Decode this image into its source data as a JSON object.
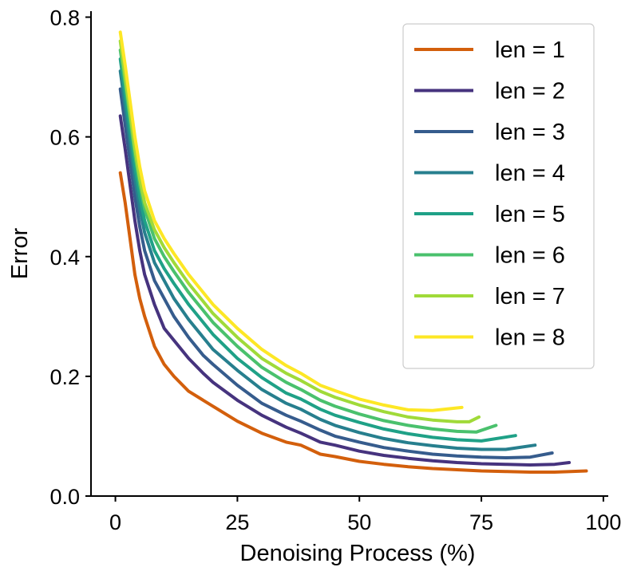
{
  "chart_data": {
    "type": "line",
    "title": "",
    "xlabel": "Denoising Process (%)",
    "ylabel": "Error",
    "xlim": [
      -5,
      101
    ],
    "ylim": [
      0.0,
      0.81
    ],
    "xticks": [
      0,
      25,
      50,
      75,
      100
    ],
    "xtick_labels": [
      "0",
      "25",
      "50",
      "75",
      "100"
    ],
    "yticks": [
      0.0,
      0.2,
      0.4,
      0.6,
      0.8
    ],
    "ytick_labels": [
      "0.0",
      "0.2",
      "0.4",
      "0.6",
      "0.8"
    ],
    "grid": false,
    "legend_position": "top-right",
    "series": [
      {
        "name": "len = 1",
        "color": "#d35f0c",
        "x": [
          1,
          2,
          3,
          4,
          5,
          6,
          8,
          10,
          12,
          15,
          18,
          20,
          25,
          30,
          35,
          38,
          42,
          45,
          50,
          55,
          60,
          65,
          70,
          75,
          80,
          85,
          90,
          96.5
        ],
        "y": [
          0.54,
          0.49,
          0.43,
          0.37,
          0.33,
          0.3,
          0.25,
          0.22,
          0.2,
          0.175,
          0.16,
          0.15,
          0.125,
          0.105,
          0.09,
          0.085,
          0.07,
          0.066,
          0.058,
          0.053,
          0.049,
          0.046,
          0.044,
          0.042,
          0.041,
          0.04,
          0.04,
          0.042
        ]
      },
      {
        "name": "len = 2",
        "color": "#46337e",
        "x": [
          1,
          2,
          3,
          4,
          5,
          6,
          8,
          10,
          12,
          15,
          18,
          20,
          25,
          30,
          35,
          38,
          42,
          45,
          50,
          55,
          60,
          65,
          70,
          75,
          80,
          85,
          90,
          93
        ],
        "y": [
          0.635,
          0.58,
          0.52,
          0.46,
          0.41,
          0.37,
          0.32,
          0.28,
          0.26,
          0.23,
          0.205,
          0.19,
          0.16,
          0.135,
          0.115,
          0.105,
          0.09,
          0.085,
          0.075,
          0.068,
          0.063,
          0.059,
          0.056,
          0.054,
          0.053,
          0.052,
          0.053,
          0.056
        ]
      },
      {
        "name": "len = 3",
        "color": "#365c8d",
        "x": [
          1,
          2,
          3,
          4,
          5,
          6,
          8,
          10,
          12,
          15,
          18,
          20,
          25,
          30,
          35,
          38,
          42,
          45,
          50,
          55,
          60,
          65,
          70,
          75,
          80,
          85,
          89.5
        ],
        "y": [
          0.68,
          0.62,
          0.56,
          0.5,
          0.45,
          0.41,
          0.36,
          0.33,
          0.3,
          0.265,
          0.235,
          0.22,
          0.185,
          0.155,
          0.135,
          0.125,
          0.11,
          0.1,
          0.09,
          0.081,
          0.075,
          0.07,
          0.067,
          0.065,
          0.064,
          0.065,
          0.072
        ]
      },
      {
        "name": "len = 4",
        "color": "#277f8e",
        "x": [
          1,
          2,
          3,
          4,
          5,
          6,
          8,
          10,
          12,
          15,
          18,
          20,
          25,
          30,
          35,
          38,
          42,
          45,
          50,
          55,
          60,
          65,
          70,
          75,
          80,
          86
        ],
        "y": [
          0.71,
          0.65,
          0.59,
          0.53,
          0.48,
          0.44,
          0.39,
          0.36,
          0.33,
          0.295,
          0.265,
          0.245,
          0.21,
          0.178,
          0.155,
          0.145,
          0.128,
          0.118,
          0.106,
          0.096,
          0.089,
          0.084,
          0.08,
          0.078,
          0.078,
          0.085
        ]
      },
      {
        "name": "len = 5",
        "color": "#1fa187",
        "x": [
          1,
          2,
          3,
          4,
          5,
          6,
          8,
          10,
          12,
          15,
          18,
          20,
          25,
          30,
          35,
          38,
          42,
          45,
          50,
          55,
          60,
          65,
          70,
          75,
          82
        ],
        "y": [
          0.73,
          0.67,
          0.61,
          0.55,
          0.5,
          0.46,
          0.41,
          0.38,
          0.355,
          0.32,
          0.29,
          0.27,
          0.23,
          0.198,
          0.172,
          0.162,
          0.145,
          0.135,
          0.123,
          0.112,
          0.104,
          0.098,
          0.094,
          0.092,
          0.101
        ]
      },
      {
        "name": "len = 6",
        "color": "#4ac16d",
        "x": [
          1,
          2,
          3,
          4,
          5,
          6,
          8,
          10,
          12,
          15,
          18,
          20,
          25,
          30,
          35,
          38,
          42,
          45,
          50,
          55,
          60,
          65,
          70,
          74,
          78
        ],
        "y": [
          0.745,
          0.69,
          0.63,
          0.57,
          0.52,
          0.48,
          0.43,
          0.4,
          0.375,
          0.34,
          0.31,
          0.29,
          0.25,
          0.215,
          0.19,
          0.178,
          0.16,
          0.15,
          0.137,
          0.126,
          0.118,
          0.112,
          0.108,
          0.107,
          0.118
        ]
      },
      {
        "name": "len = 7",
        "color": "#a0da39",
        "x": [
          1,
          2,
          3,
          4,
          5,
          6,
          8,
          10,
          12,
          15,
          18,
          20,
          25,
          30,
          35,
          38,
          42,
          45,
          50,
          55,
          60,
          65,
          70,
          72.5,
          74.5
        ],
        "y": [
          0.76,
          0.7,
          0.64,
          0.58,
          0.53,
          0.49,
          0.445,
          0.415,
          0.39,
          0.355,
          0.325,
          0.305,
          0.265,
          0.23,
          0.205,
          0.193,
          0.175,
          0.165,
          0.152,
          0.141,
          0.132,
          0.127,
          0.124,
          0.124,
          0.132
        ]
      },
      {
        "name": "len = 8",
        "color": "#fde725",
        "x": [
          1,
          2,
          3,
          4,
          5,
          6,
          8,
          10,
          12,
          15,
          18,
          20,
          25,
          30,
          35,
          38,
          42,
          45,
          50,
          55,
          60,
          65,
          71
        ],
        "y": [
          0.775,
          0.72,
          0.66,
          0.6,
          0.55,
          0.51,
          0.46,
          0.43,
          0.405,
          0.37,
          0.34,
          0.32,
          0.28,
          0.245,
          0.218,
          0.205,
          0.185,
          0.176,
          0.162,
          0.152,
          0.144,
          0.143,
          0.148
        ]
      }
    ]
  }
}
